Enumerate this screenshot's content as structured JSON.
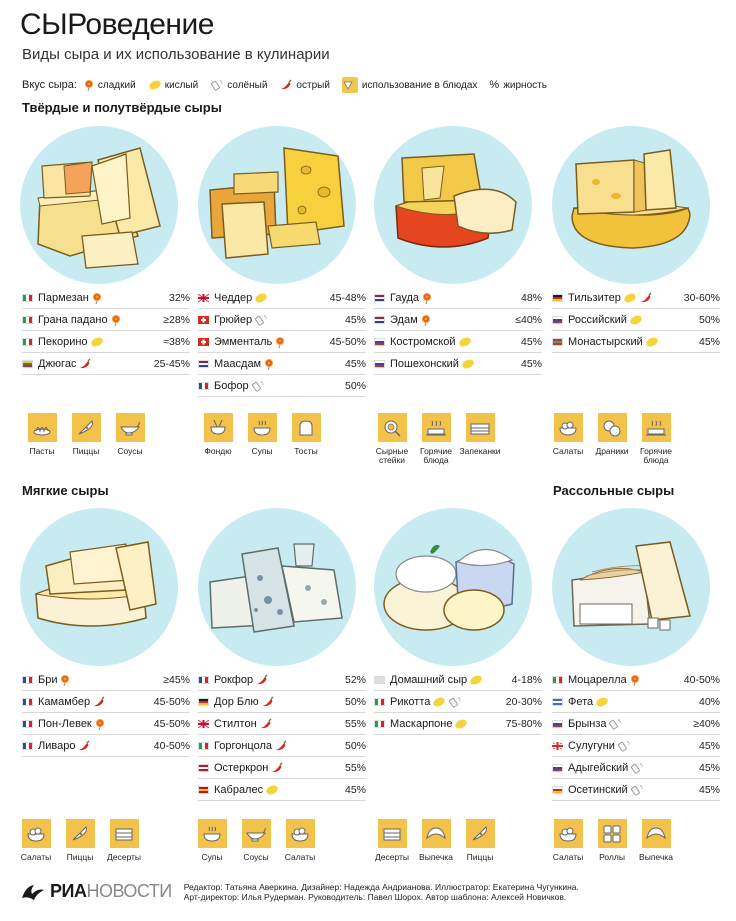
{
  "header": {
    "title": "СЫРоведение",
    "subtitle": "Виды сыра и их использование в кулинарии"
  },
  "legend": {
    "label": "Вкус сыра:",
    "items": [
      {
        "icon": "lollipop-icon",
        "text": "сладкий"
      },
      {
        "icon": "lemon-icon",
        "text": "кислый"
      },
      {
        "icon": "salt-shaker-icon",
        "text": "солёный"
      },
      {
        "icon": "chili-pepper-icon",
        "text": "острый"
      },
      {
        "icon": "dish-usage-icon",
        "text": "использование в блюдах"
      },
      {
        "icon": "percent-icon",
        "text": "жирность"
      }
    ]
  },
  "sections": {
    "hard": "Твёрдые и полутвёрдые сыры",
    "soft": "Мягкие сыры",
    "brine": "Рассольные сыры"
  },
  "groups": [
    {
      "cheeses": [
        {
          "name": "Пармезан",
          "taste": [
            "sweet"
          ],
          "fat": "32%",
          "flag": [
            "#2a9a48",
            "#ffffff",
            "#d4232b"
          ]
        },
        {
          "name": "Грана падано",
          "taste": [
            "sweet"
          ],
          "fat": "≥28%",
          "flag": [
            "#2a9a48",
            "#ffffff",
            "#d4232b"
          ]
        },
        {
          "name": "Пекорино",
          "taste": [
            "sour"
          ],
          "fat": "≈38%",
          "flag": [
            "#2a9a48",
            "#ffffff",
            "#d4232b"
          ]
        },
        {
          "name": "Джюгас",
          "taste": [
            "spicy"
          ],
          "fat": "25-45%",
          "flag_h": [
            "#f7c51e",
            "#2a8a48",
            "#d4232b"
          ]
        }
      ],
      "uses": [
        {
          "icon": "pasta-icon",
          "label": "Пасты"
        },
        {
          "icon": "pizza-icon",
          "label": "Пиццы"
        },
        {
          "icon": "sauce-boat-icon",
          "label": "Соусы"
        }
      ]
    },
    {
      "cheeses": [
        {
          "name": "Чеддер",
          "taste": [
            "sour"
          ],
          "fat": "45-48%",
          "flag_uk": true
        },
        {
          "name": "Грюйер",
          "taste": [
            "salty"
          ],
          "fat": "45%",
          "flag_ch": true
        },
        {
          "name": "Эмменталь",
          "taste": [
            "sweet"
          ],
          "fat": "45-50%",
          "flag_ch": true
        },
        {
          "name": "Маасдам",
          "taste": [
            "sweet"
          ],
          "fat": "45%",
          "flag_h": [
            "#ae1c28",
            "#ffffff",
            "#21468b"
          ]
        },
        {
          "name": "Бофор",
          "taste": [
            "salty"
          ],
          "fat": "50%",
          "flag": [
            "#2a4ea0",
            "#ffffff",
            "#d4232b"
          ]
        }
      ],
      "uses": [
        {
          "icon": "fondue-icon",
          "label": "Фондю"
        },
        {
          "icon": "soup-bowl-icon",
          "label": "Супы"
        },
        {
          "icon": "toast-icon",
          "label": "Тосты"
        }
      ]
    },
    {
      "cheeses": [
        {
          "name": "Гауда",
          "taste": [
            "sweet"
          ],
          "fat": "48%",
          "flag_h": [
            "#ae1c28",
            "#ffffff",
            "#21468b"
          ]
        },
        {
          "name": "Эдам",
          "taste": [
            "sweet"
          ],
          "fat": "≤40%",
          "flag_h": [
            "#ae1c28",
            "#ffffff",
            "#21468b"
          ]
        },
        {
          "name": "Костромской",
          "taste": [
            "sour"
          ],
          "fat": "45%",
          "flag_h": [
            "#ffffff",
            "#2a4ea0",
            "#d4232b"
          ]
        },
        {
          "name": "Пошехонский",
          "taste": [
            "sour"
          ],
          "fat": "45%",
          "flag_h": [
            "#ffffff",
            "#2a4ea0",
            "#d4232b"
          ]
        }
      ],
      "uses": [
        {
          "icon": "cheese-steak-icon",
          "label": "Сырные стейки"
        },
        {
          "icon": "hot-dish-icon",
          "label": "Горячие блюда"
        },
        {
          "icon": "casserole-icon",
          "label": "Запеканки"
        }
      ]
    },
    {
      "cheeses": [
        {
          "name": "Тильзитер",
          "taste": [
            "sour",
            "spicy"
          ],
          "fat": "30-60%",
          "flag_h": [
            "#1a1a1a",
            "#d4232b",
            "#f7c51e"
          ]
        },
        {
          "name": "Российский",
          "taste": [
            "sour"
          ],
          "fat": "50%",
          "flag_h": [
            "#ffffff",
            "#2a4ea0",
            "#d4232b"
          ]
        },
        {
          "name": "Монастырский",
          "taste": [
            "sour"
          ],
          "fat": "45%",
          "flag_h": [
            "#c8313e",
            "#4aa657",
            "#c8313e"
          ]
        }
      ],
      "uses": [
        {
          "icon": "salad-icon",
          "label": "Салаты"
        },
        {
          "icon": "potato-pancakes-icon",
          "label": "Драники"
        },
        {
          "icon": "hot-dish-icon",
          "label": "Горячие блюда"
        }
      ]
    },
    {
      "cheeses": [
        {
          "name": "Бри",
          "taste": [
            "sweet"
          ],
          "fat": "≥45%",
          "flag": [
            "#2a4ea0",
            "#ffffff",
            "#d4232b"
          ]
        },
        {
          "name": "Камамбер",
          "taste": [
            "spicy"
          ],
          "fat": "45-50%",
          "flag": [
            "#2a4ea0",
            "#ffffff",
            "#d4232b"
          ]
        },
        {
          "name": "Пон-Левек",
          "taste": [
            "sweet"
          ],
          "fat": "45-50%",
          "flag": [
            "#2a4ea0",
            "#ffffff",
            "#d4232b"
          ]
        },
        {
          "name": "Ливаро",
          "taste": [
            "spicy"
          ],
          "fat": "40-50%",
          "flag": [
            "#2a4ea0",
            "#ffffff",
            "#d4232b"
          ]
        }
      ],
      "uses": [
        {
          "icon": "salad-icon",
          "label": "Салаты"
        },
        {
          "icon": "pizza-icon",
          "label": "Пиццы"
        },
        {
          "icon": "dessert-icon",
          "label": "Десерты"
        }
      ]
    },
    {
      "cheeses": [
        {
          "name": "Рокфор",
          "taste": [
            "spicy"
          ],
          "fat": "52%",
          "flag": [
            "#2a4ea0",
            "#ffffff",
            "#d4232b"
          ]
        },
        {
          "name": "Дор Блю",
          "taste": [
            "spicy"
          ],
          "fat": "50%",
          "flag_h": [
            "#1a1a1a",
            "#d4232b",
            "#f7c51e"
          ]
        },
        {
          "name": "Стилтон",
          "taste": [
            "spicy"
          ],
          "fat": "55%",
          "flag_uk": true
        },
        {
          "name": "Горгонцола",
          "taste": [
            "spicy"
          ],
          "fat": "50%",
          "flag": [
            "#2a9a48",
            "#ffffff",
            "#d4232b"
          ]
        },
        {
          "name": "Остеркрон",
          "taste": [
            "spicy"
          ],
          "fat": "55%",
          "flag_h": [
            "#c8102e",
            "#ffffff",
            "#c8102e"
          ]
        },
        {
          "name": "Кабралес",
          "taste": [
            "sour"
          ],
          "fat": "45%",
          "flag_h": [
            "#c60b1e",
            "#ffc400",
            "#c60b1e"
          ]
        }
      ],
      "uses": [
        {
          "icon": "soup-bowl-icon",
          "label": "Супы"
        },
        {
          "icon": "sauce-boat-icon",
          "label": "Соусы"
        },
        {
          "icon": "salad-icon",
          "label": "Салаты"
        }
      ]
    },
    {
      "cheeses": [
        {
          "name": "Домашний сыр",
          "taste": [
            "sour"
          ],
          "fat": "4-18%",
          "flag_h": [
            "#dddddd",
            "#dddddd",
            "#dddddd"
          ]
        },
        {
          "name": "Рикотта",
          "taste": [
            "sour",
            "salty"
          ],
          "fat": "20-30%",
          "flag": [
            "#2a9a48",
            "#ffffff",
            "#d4232b"
          ]
        },
        {
          "name": "Маскарпоне",
          "taste": [
            "sour"
          ],
          "fat": "75-80%",
          "flag": [
            "#2a9a48",
            "#ffffff",
            "#d4232b"
          ]
        }
      ],
      "uses": [
        {
          "icon": "dessert-icon",
          "label": "Десерты"
        },
        {
          "icon": "croissant-icon",
          "label": "Выпечка"
        },
        {
          "icon": "pizza-icon",
          "label": "Пиццы"
        }
      ]
    },
    {
      "cheeses": [
        {
          "name": "Моцарелла",
          "taste": [
            "sweet"
          ],
          "fat": "40-50%",
          "flag": [
            "#2a9a48",
            "#ffffff",
            "#d4232b"
          ]
        },
        {
          "name": "Фета",
          "taste": [
            "sour"
          ],
          "fat": "40%",
          "flag_h": [
            "#3a6fc8",
            "#ffffff",
            "#3a6fc8"
          ]
        },
        {
          "name": "Брынза",
          "taste": [
            "salty"
          ],
          "fat": "≥40%",
          "flag_h": [
            "#ffffff",
            "#2a4ea0",
            "#d4232b"
          ]
        },
        {
          "name": "Сулугуни",
          "taste": [
            "salty"
          ],
          "fat": "45%",
          "flag_ge": true
        },
        {
          "name": "Адыгейский",
          "taste": [
            "salty"
          ],
          "fat": "45%",
          "flag_h": [
            "#ffffff",
            "#2a4ea0",
            "#d4232b"
          ]
        },
        {
          "name": "Осетинский",
          "taste": [
            "salty"
          ],
          "fat": "45%",
          "flag_h": [
            "#ffffff",
            "#d4232b",
            "#f7c51e"
          ]
        }
      ],
      "uses": [
        {
          "icon": "salad-icon",
          "label": "Салаты"
        },
        {
          "icon": "rolls-icon",
          "label": "Роллы"
        },
        {
          "icon": "croissant-icon",
          "label": "Выпечка"
        }
      ]
    }
  ],
  "footer": {
    "logo_main": "РИА",
    "logo_grey": "НОВОСТИ",
    "credits_line1": "Редактор: Татьяна Аверкина. Дизайнер: Надежда Андрианова. Иллюстратор: Екатерина Чугункина.",
    "credits_line2": "Арт-директор: Илья Рудерман. Руководитель: Павел Шорох. Автор шаблона: Алексей Новичков."
  }
}
